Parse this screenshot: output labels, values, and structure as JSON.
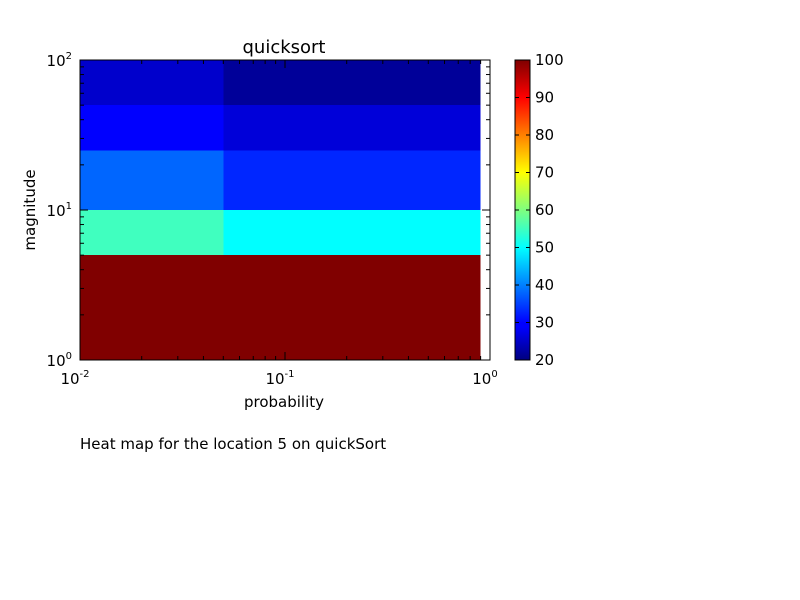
{
  "caption": "Heat map for the location 5 on quickSort",
  "chart_data": {
    "type": "heatmap",
    "title": "quicksort",
    "xlabel": "probability",
    "ylabel": "magnitude",
    "xscale": "log",
    "yscale": "log",
    "xlim": [
      0.01,
      1
    ],
    "ylim": [
      1,
      100
    ],
    "x_ticks": [
      {
        "base": "10",
        "exp": "-2",
        "value": 0.01
      },
      {
        "base": "10",
        "exp": "-1",
        "value": 0.1
      },
      {
        "base": "10",
        "exp": "0",
        "value": 1
      }
    ],
    "y_ticks": [
      {
        "base": "10",
        "exp": "0",
        "value": 1
      },
      {
        "base": "10",
        "exp": "1",
        "value": 10
      },
      {
        "base": "10",
        "exp": "2",
        "value": 100
      }
    ],
    "x_edges": [
      0.01,
      0.05,
      0.9
    ],
    "y_edges": [
      1,
      5,
      10,
      25,
      50,
      100
    ],
    "values": [
      [
        100,
        100
      ],
      [
        55,
        50
      ],
      [
        38,
        33
      ],
      [
        30,
        27
      ],
      [
        26,
        22
      ]
    ],
    "colorbar": {
      "min": 20,
      "max": 100,
      "colormap": "jet",
      "ticks": [
        "20",
        "30",
        "40",
        "50",
        "60",
        "70",
        "80",
        "90",
        "100"
      ]
    }
  }
}
